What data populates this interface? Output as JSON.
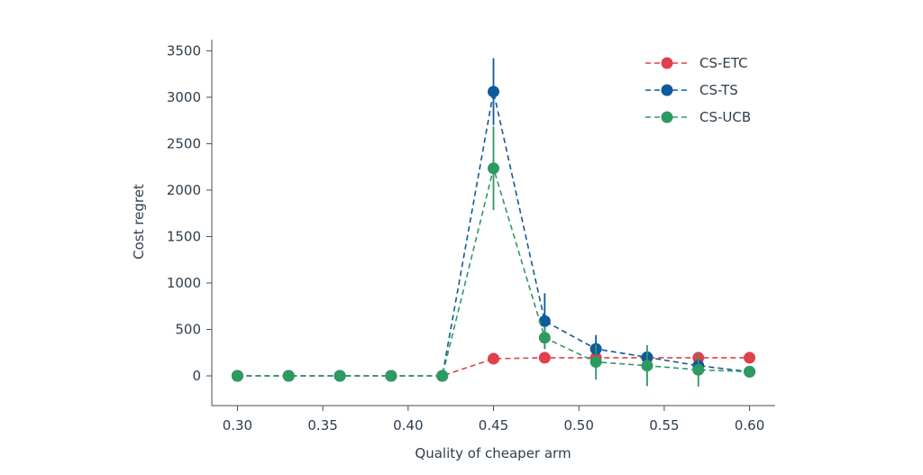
{
  "chart_data": {
    "type": "line",
    "xlabel": "Quality of cheaper arm",
    "ylabel": "Cost regret",
    "xlim": [
      0.285,
      0.615
    ],
    "ylim": [
      -320,
      3620
    ],
    "xticks": [
      0.3,
      0.35,
      0.4,
      0.45,
      0.5,
      0.55,
      0.6
    ],
    "xtick_labels": [
      "0.30",
      "0.35",
      "0.40",
      "0.45",
      "0.50",
      "0.55",
      "0.60"
    ],
    "yticks": [
      0,
      500,
      1000,
      1500,
      2000,
      2500,
      3000,
      3500
    ],
    "ytick_labels": [
      "0",
      "500",
      "1000",
      "1500",
      "2000",
      "2500",
      "3000",
      "3500"
    ],
    "grid": false,
    "legend_position": "top-right",
    "x": [
      0.3,
      0.33,
      0.36,
      0.39,
      0.42,
      0.45,
      0.48,
      0.51,
      0.54,
      0.57,
      0.6
    ],
    "series": [
      {
        "name": "CS-ETC",
        "color": "#e0404a",
        "values": [
          0,
          0,
          0,
          0,
          0,
          185,
          195,
          195,
          195,
          195,
          195
        ],
        "err": [
          0,
          0,
          0,
          0,
          0,
          0,
          0,
          0,
          0,
          0,
          0
        ]
      },
      {
        "name": "CS-TS",
        "color": "#0e5a9c",
        "values": [
          0,
          0,
          0,
          0,
          0,
          3060,
          590,
          290,
          200,
          110,
          45
        ],
        "err": [
          0,
          0,
          0,
          0,
          0,
          360,
          300,
          150,
          0,
          0,
          0
        ]
      },
      {
        "name": "CS-UCB",
        "color": "#2e9a62",
        "values": [
          0,
          0,
          0,
          0,
          0,
          2235,
          410,
          150,
          110,
          65,
          45
        ],
        "err": [
          0,
          0,
          0,
          0,
          0,
          450,
          120,
          190,
          220,
          180,
          0
        ]
      }
    ]
  }
}
